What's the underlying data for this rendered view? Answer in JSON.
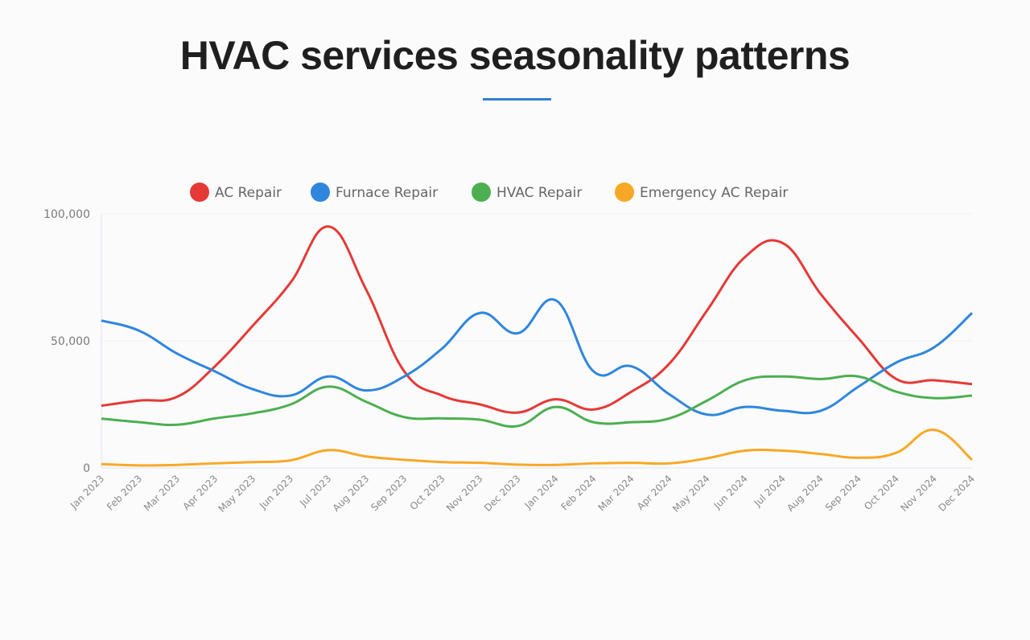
{
  "title": "HVAC services seasonality patterns",
  "chart_data": {
    "type": "line",
    "title": "HVAC services seasonality patterns",
    "xlabel": "",
    "ylabel": "",
    "ylim": [
      0,
      100000
    ],
    "yticks": [
      0,
      50000,
      100000
    ],
    "ytick_labels": [
      "0",
      "50,000",
      "100,000"
    ],
    "grid": true,
    "legend": "top",
    "categories": [
      "Jan 2023",
      "Feb 2023",
      "Mar 2023",
      "Apr 2023",
      "May 2023",
      "Jun 2023",
      "Jul 2023",
      "Aug 2023",
      "Sep 2023",
      "Oct 2023",
      "Nov 2023",
      "Dec 2023",
      "Jan 2024",
      "Feb 2024",
      "Mar 2024",
      "Apr 2024",
      "May 2024",
      "Jun 2024",
      "Jul 2024",
      "Aug 2024",
      "Sep 2024",
      "Oct 2024",
      "Nov 2024",
      "Dec 2024"
    ],
    "series": [
      {
        "name": "AC Repair",
        "color": "#e53935",
        "values": [
          24500,
          26500,
          28000,
          40000,
          56000,
          73000,
          95000,
          70000,
          38000,
          28500,
          25000,
          21800,
          27000,
          23000,
          30000,
          41000,
          62000,
          83000,
          88500,
          68500,
          51000,
          35000,
          34500,
          33000
        ]
      },
      {
        "name": "Furnace Repair",
        "color": "#2e86de",
        "values": [
          58000,
          54000,
          45000,
          38000,
          31000,
          28500,
          36000,
          30500,
          36000,
          47000,
          61000,
          53000,
          66000,
          38000,
          40000,
          29000,
          21000,
          24000,
          22500,
          22500,
          32000,
          41500,
          47500,
          61000
        ]
      },
      {
        "name": "HVAC Repair",
        "color": "#4caf50",
        "values": [
          19400,
          18000,
          17000,
          19500,
          21500,
          25000,
          32000,
          26000,
          20000,
          19500,
          19000,
          16500,
          24000,
          18000,
          18000,
          19500,
          26500,
          34500,
          36000,
          35000,
          36000,
          30000,
          27500,
          28500
        ]
      },
      {
        "name": "Emergency AC Repair",
        "color": "#f9a825",
        "values": [
          1500,
          1000,
          1200,
          1800,
          2300,
          3000,
          7000,
          4500,
          3200,
          2300,
          2000,
          1300,
          1200,
          1800,
          2000,
          1800,
          3800,
          6800,
          6800,
          5500,
          4000,
          6000,
          15000,
          3200
        ]
      }
    ]
  }
}
